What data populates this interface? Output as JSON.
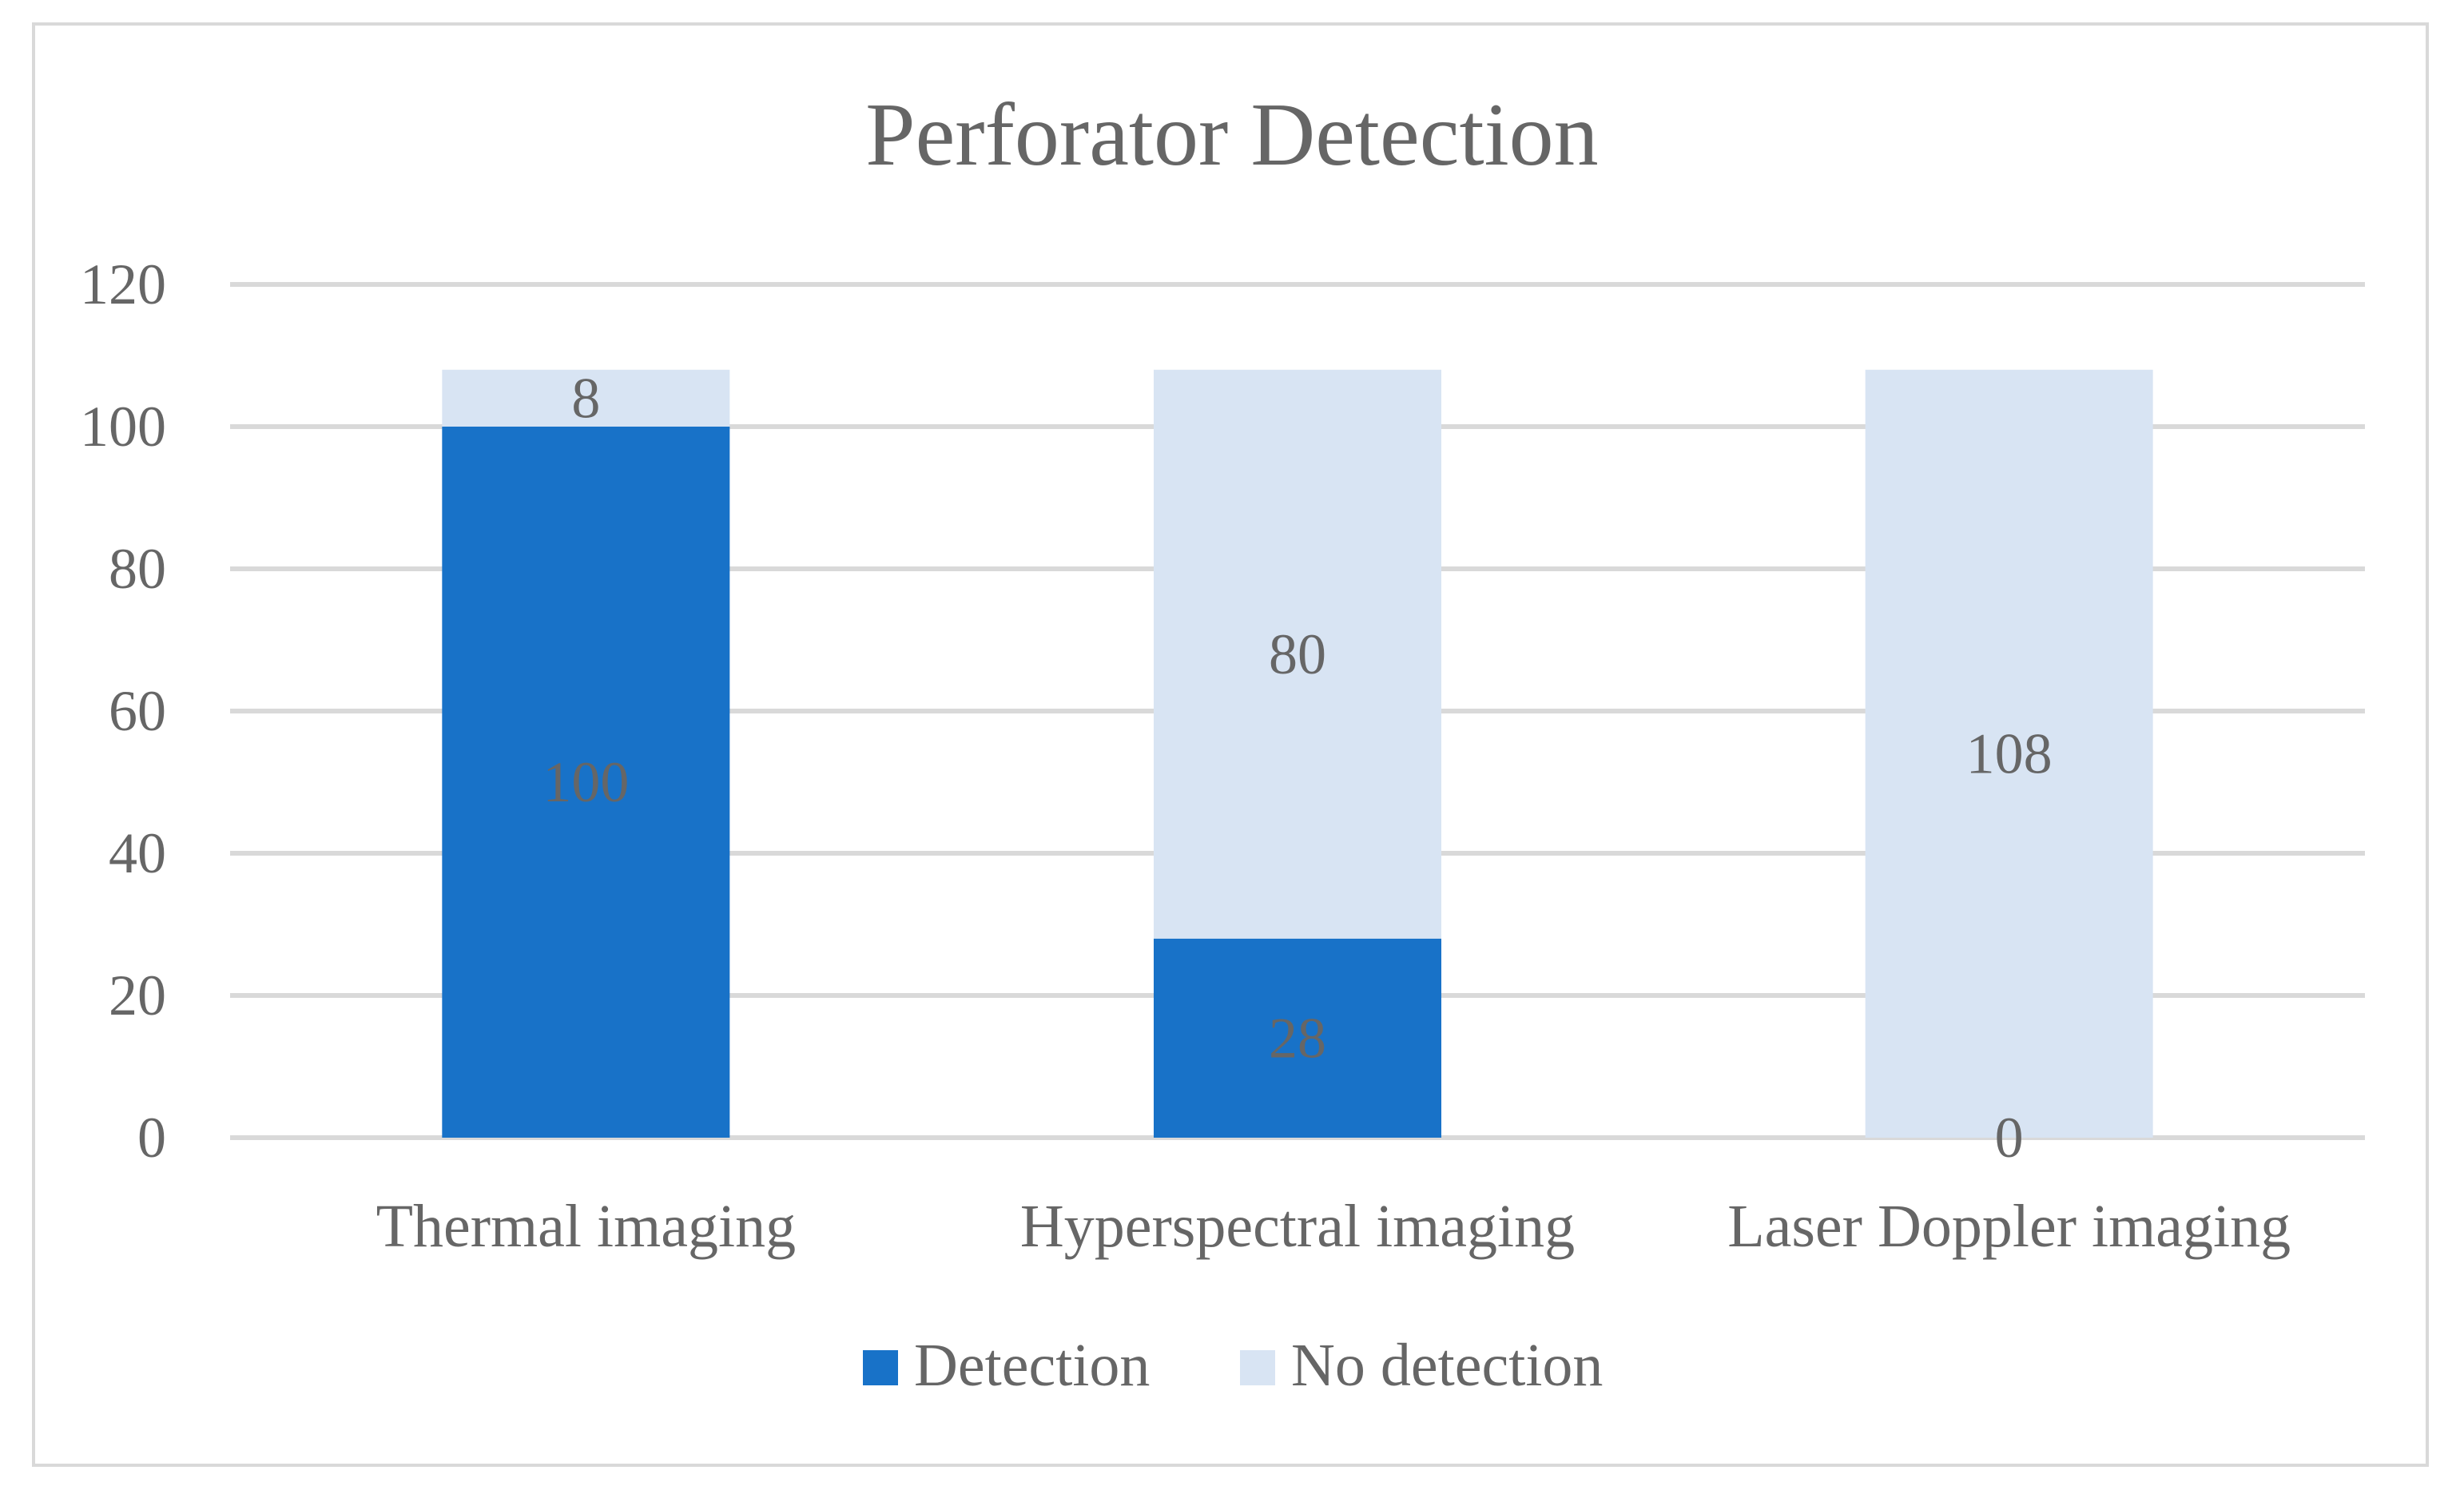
{
  "chart_data": {
    "type": "bar",
    "stacked": true,
    "title": "Perforator Detection",
    "categories": [
      "Thermal imaging",
      "Hyperspectral imaging",
      "Laser Doppler imaging"
    ],
    "series": [
      {
        "name": "Detection",
        "values": [
          100,
          28,
          0
        ],
        "color": "#1872c8"
      },
      {
        "name": "No detection",
        "values": [
          8,
          80,
          108
        ],
        "color": "#d8e4f3"
      }
    ],
    "data_labels": [
      [
        "100",
        "28",
        "0"
      ],
      [
        "8",
        "80",
        "108"
      ]
    ],
    "yticks": [
      "0",
      "20",
      "40",
      "60",
      "80",
      "100",
      "120"
    ],
    "ylim": [
      0,
      120
    ],
    "grid": true,
    "legend_position": "bottom",
    "label_color": "#666666",
    "grid_color": "#d9d9d9"
  }
}
